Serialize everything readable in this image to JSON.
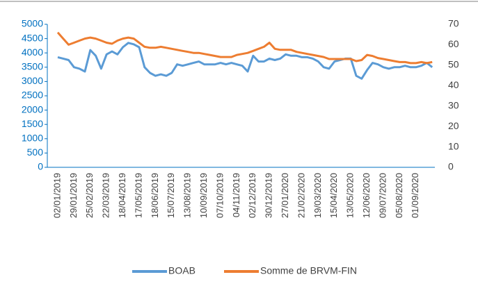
{
  "chart_data": {
    "type": "line",
    "categories": [
      "02/01/2019",
      null,
      null,
      "29/01/2019",
      null,
      null,
      "25/02/2019",
      null,
      null,
      "22/03/2019",
      null,
      null,
      "18/04/2019",
      null,
      null,
      "17/05/2019",
      null,
      null,
      "18/06/2019",
      null,
      null,
      "15/07/2019",
      null,
      null,
      "13/08/2019",
      null,
      null,
      "10/09/2019",
      null,
      null,
      "07/10/2019",
      null,
      null,
      "04/11/2019",
      null,
      null,
      "02/12/2019",
      null,
      null,
      "30/12/2019",
      null,
      null,
      "27/01/2020",
      null,
      null,
      "21/02/2020",
      null,
      null,
      "19/03/2020",
      null,
      null,
      "15/04/2020",
      null,
      null,
      "13/05/2020",
      null,
      null,
      "12/06/2020",
      null,
      null,
      "09/07/2020",
      null,
      null,
      "05/08/2020",
      null,
      null,
      "01/09/2020",
      null,
      null,
      null
    ],
    "series": [
      {
        "name": "BOAB",
        "color": "#5b9bd5",
        "axis": "y",
        "values": [
          3850,
          3800,
          3750,
          3500,
          3450,
          3350,
          4100,
          3900,
          3450,
          3950,
          4050,
          3950,
          4200,
          4350,
          4300,
          4200,
          3500,
          3300,
          3200,
          3250,
          3200,
          3300,
          3600,
          3550,
          3600,
          3650,
          3700,
          3600,
          3600,
          3600,
          3650,
          3600,
          3650,
          3600,
          3550,
          3350,
          3900,
          3700,
          3700,
          3800,
          3750,
          3800,
          3950,
          3900,
          3900,
          3850,
          3850,
          3800,
          3700,
          3500,
          3450,
          3700,
          3750,
          3800,
          3800,
          3200,
          3100,
          3400,
          3650,
          3600,
          3500,
          3450,
          3500,
          3500,
          3550,
          3500,
          3500,
          3550,
          3650,
          3500
        ]
      },
      {
        "name": "Somme de BRVM-FIN",
        "color": "#ed7d31",
        "axis": "y2",
        "values": [
          66,
          63,
          60,
          61,
          62,
          63,
          63.5,
          63,
          62,
          61,
          60.5,
          62,
          63,
          63.5,
          63,
          61,
          59,
          58.5,
          58.5,
          59,
          58.5,
          58,
          57.5,
          57,
          56.5,
          56,
          56,
          55.5,
          55,
          54.5,
          54,
          54,
          54,
          55,
          55.5,
          56,
          57,
          58,
          59,
          61,
          58,
          57.5,
          57.5,
          57.5,
          56.5,
          56,
          55.5,
          55,
          54.5,
          54,
          53,
          53,
          53,
          53,
          53,
          52,
          52.5,
          55,
          54.5,
          53.5,
          53,
          52.5,
          52,
          51.5,
          51.5,
          51,
          51,
          51.5,
          51,
          51.5
        ]
      }
    ],
    "ylim": [
      0,
      5000
    ],
    "yticks": [
      0,
      500,
      1000,
      1500,
      2000,
      2500,
      3000,
      3500,
      4000,
      4500,
      5000
    ],
    "y2lim": [
      0,
      70
    ],
    "y2ticks": [
      0,
      10,
      20,
      30,
      40,
      50,
      60,
      70
    ],
    "legend": "bottom"
  }
}
